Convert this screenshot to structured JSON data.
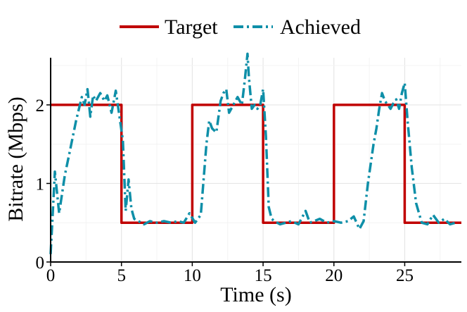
{
  "chart_data": {
    "type": "line",
    "title": "",
    "xlabel": "Time (s)",
    "ylabel": "Bitrate (Mbps)",
    "xlim": [
      0,
      29
    ],
    "ylim": [
      0,
      2.6
    ],
    "xticks": [
      0,
      5,
      10,
      15,
      20,
      25
    ],
    "yticks": [
      0,
      1,
      2
    ],
    "grid": true,
    "legend_position": "top-center",
    "series": [
      {
        "name": "Target",
        "color": "#c00000",
        "line_style": "solid",
        "x": [
          0,
          5,
          5,
          10,
          10,
          15,
          15,
          20,
          20,
          25,
          25,
          29
        ],
        "y": [
          2.0,
          2.0,
          0.5,
          0.5,
          2.0,
          2.0,
          0.5,
          0.5,
          2.0,
          2.0,
          0.5,
          0.5
        ]
      },
      {
        "name": "Achieved",
        "color": "#0e8fa8",
        "line_style": "dashdot",
        "x": [
          0.0,
          0.3,
          0.6,
          1.0,
          1.4,
          1.8,
          2.2,
          2.4,
          2.6,
          2.8,
          3.0,
          3.2,
          3.5,
          3.8,
          4.0,
          4.3,
          4.6,
          4.9,
          5.1,
          5.3,
          5.5,
          5.7,
          5.9,
          6.2,
          6.6,
          7.0,
          7.5,
          8.0,
          8.5,
          9.0,
          9.4,
          9.8,
          10.2,
          10.6,
          11.0,
          11.2,
          11.4,
          11.7,
          12.0,
          12.2,
          12.4,
          12.6,
          12.9,
          13.2,
          13.5,
          13.7,
          13.9,
          14.0,
          14.2,
          14.4,
          14.6,
          14.8,
          15.0,
          15.2,
          15.4,
          15.6,
          15.8,
          16.2,
          16.6,
          17.0,
          17.5,
          18.0,
          18.3,
          18.6,
          19.0,
          19.5,
          20.0,
          20.5,
          21.0,
          21.4,
          21.8,
          22.1,
          22.4,
          22.8,
          23.0,
          23.2,
          23.4,
          23.6,
          23.8,
          24.0,
          24.2,
          24.4,
          24.6,
          24.8,
          25.0,
          25.2,
          25.5,
          25.8,
          26.2,
          26.6,
          27.0,
          27.4,
          27.8,
          28.2,
          28.6
        ],
        "y": [
          0.1,
          1.15,
          0.62,
          1.1,
          1.45,
          1.8,
          2.1,
          2.0,
          2.2,
          1.85,
          2.12,
          2.05,
          2.15,
          2.05,
          2.12,
          1.9,
          2.18,
          1.8,
          1.55,
          0.65,
          1.05,
          0.68,
          0.55,
          0.52,
          0.48,
          0.52,
          0.5,
          0.52,
          0.5,
          0.52,
          0.5,
          0.62,
          0.5,
          0.6,
          1.5,
          1.8,
          1.7,
          1.65,
          2.05,
          2.15,
          2.2,
          1.9,
          2.0,
          2.1,
          2.0,
          2.3,
          2.65,
          2.35,
          1.95,
          2.0,
          1.95,
          2.0,
          2.2,
          1.6,
          0.7,
          0.55,
          0.52,
          0.48,
          0.5,
          0.52,
          0.48,
          0.65,
          0.5,
          0.52,
          0.55,
          0.5,
          0.52,
          0.5,
          0.52,
          0.58,
          0.42,
          0.52,
          1.0,
          1.5,
          1.7,
          1.95,
          2.15,
          2.05,
          2.0,
          1.95,
          2.02,
          2.07,
          1.95,
          2.15,
          2.28,
          1.8,
          1.2,
          0.75,
          0.5,
          0.48,
          0.6,
          0.5,
          0.55,
          0.48,
          0.5
        ]
      }
    ]
  }
}
